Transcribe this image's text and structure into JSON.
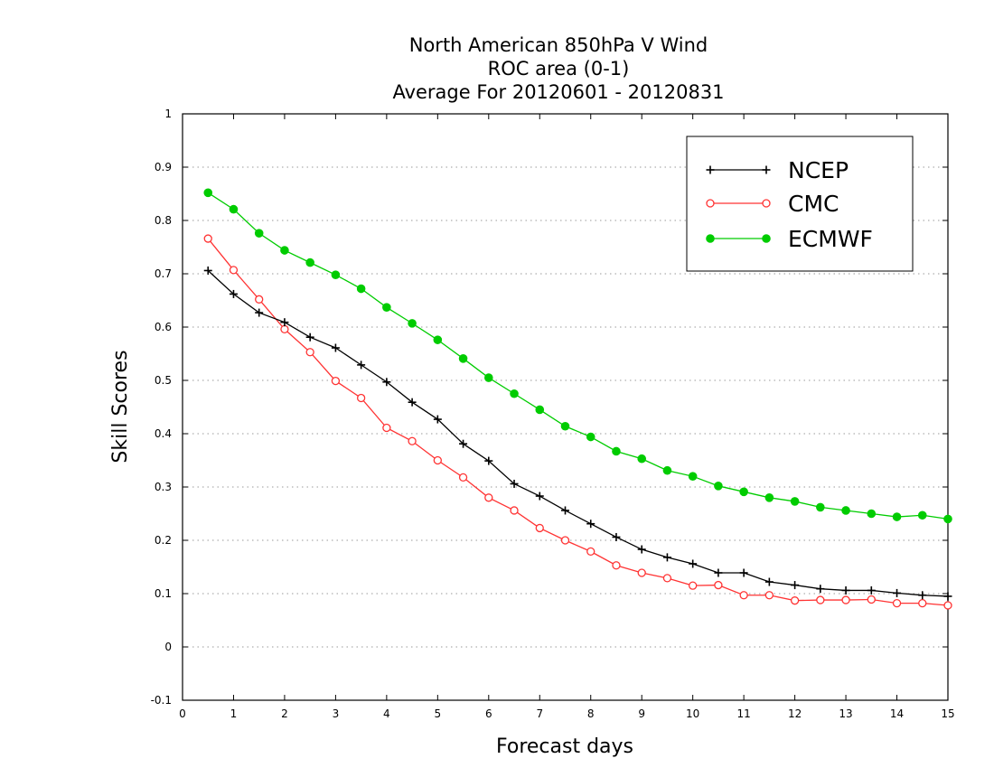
{
  "chart_data": {
    "type": "line",
    "title_lines": [
      "North American 850hPa V Wind",
      "ROC area (0-1)",
      "Average For 20120601 - 20120831"
    ],
    "xlabel": "Forecast days",
    "ylabel": "Skill Scores",
    "xlim": [
      0,
      15
    ],
    "ylim": [
      -0.1,
      1
    ],
    "x_ticks": [
      "0",
      "1",
      "2",
      "3",
      "4",
      "5",
      "6",
      "7",
      "8",
      "9",
      "10",
      "11",
      "12",
      "13",
      "14",
      "15"
    ],
    "y_ticks": [
      "-0.1",
      "0",
      "0.1",
      "0.2",
      "0.3",
      "0.4",
      "0.5",
      "0.6",
      "0.7",
      "0.8",
      "0.9",
      "1"
    ],
    "grid": "horizontal dotted",
    "legend_position": "top-right",
    "x": [
      0.5,
      1,
      1.5,
      2,
      2.5,
      3,
      3.5,
      4,
      4.5,
      5,
      5.5,
      6,
      6.5,
      7,
      7.5,
      8,
      8.5,
      9,
      9.5,
      10,
      10.5,
      11,
      11.5,
      12,
      12.5,
      13,
      13.5,
      14,
      14.5,
      15
    ],
    "series": [
      {
        "name": "NCEP",
        "color": "#000000",
        "marker": "plus",
        "values": [
          0.706,
          0.662,
          0.627,
          0.609,
          0.581,
          0.561,
          0.529,
          0.497,
          0.459,
          0.427,
          0.381,
          0.349,
          0.306,
          0.283,
          0.256,
          0.231,
          0.206,
          0.183,
          0.168,
          0.156,
          0.139,
          0.139,
          0.122,
          0.116,
          0.109,
          0.106,
          0.106,
          0.101,
          0.097,
          0.095
        ]
      },
      {
        "name": "CMC",
        "color": "#ff3333",
        "marker": "open-circle",
        "values": [
          0.766,
          0.707,
          0.652,
          0.596,
          0.553,
          0.499,
          0.467,
          0.411,
          0.386,
          0.35,
          0.318,
          0.28,
          0.256,
          0.223,
          0.2,
          0.179,
          0.153,
          0.139,
          0.129,
          0.115,
          0.116,
          0.097,
          0.097,
          0.087,
          0.088,
          0.088,
          0.089,
          0.082,
          0.082,
          0.078
        ]
      },
      {
        "name": "ECMWF",
        "color": "#00cc00",
        "marker": "filled-circle",
        "values": [
          0.852,
          0.821,
          0.776,
          0.744,
          0.721,
          0.698,
          0.672,
          0.637,
          0.607,
          0.576,
          0.541,
          0.505,
          0.475,
          0.445,
          0.414,
          0.394,
          0.367,
          0.353,
          0.331,
          0.32,
          0.302,
          0.291,
          0.28,
          0.273,
          0.262,
          0.256,
          0.25,
          0.244,
          0.247,
          0.24
        ]
      }
    ]
  }
}
